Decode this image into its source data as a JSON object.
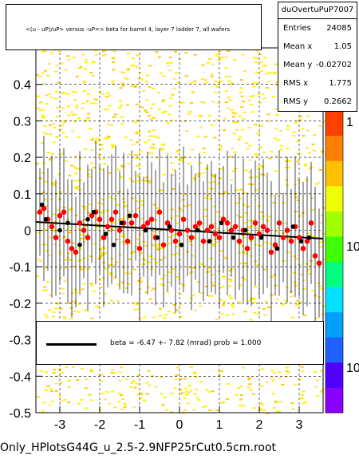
{
  "title": "<(u - uP)/uP> versus -uP=> beta for barrel 4, layer 7 ladder 7, all wafers",
  "stats": {
    "name": "duOvertuPuP7007",
    "rows": [
      {
        "key": "Entries",
        "value": "24085"
      },
      {
        "key": "Mean x",
        "value": "1.05"
      },
      {
        "key": "Mean y",
        "value": "-0.02702"
      },
      {
        "key": "RMS x",
        "value": "1.775"
      },
      {
        "key": "RMS y",
        "value": "0.2662"
      }
    ]
  },
  "legend": {
    "text": "beta =   -6.47 +- 7.82 (mrad) prob = 1.000"
  },
  "footer": "Only_HPlotsG44G_u_2.5-2.9NFP25rCut0.5cm.root",
  "colors": {
    "fit_line": "#000000",
    "points": "#ff0000",
    "markers": "#000000",
    "grid": "#000000",
    "frame": "#000000"
  },
  "chart_data": {
    "type": "scatter",
    "x_ticks": [
      "-3",
      "-2",
      "-1",
      "0",
      "1",
      "2",
      "3"
    ],
    "y_ticks": [
      "-0.5",
      "-0.4",
      "-0.3",
      "-0.2",
      "-0.1",
      "0",
      "0.1",
      "0.2",
      "0.3",
      "0.4"
    ],
    "xlim": [
      -3.6,
      3.6
    ],
    "ylim": [
      -0.5,
      0.5
    ],
    "z_axis_labels": [
      "1",
      "10",
      "10"
    ],
    "grid": true,
    "log_z": true,
    "fit_line": {
      "x": [
        -3.6,
        3.6
      ],
      "y": [
        0.023,
        -0.023
      ]
    },
    "red_points": {
      "x": [
        -3.5,
        -3.4,
        -3.3,
        -3.2,
        -3.1,
        -3.0,
        -2.9,
        -2.8,
        -2.7,
        -2.6,
        -2.5,
        -2.4,
        -2.3,
        -2.2,
        -2.1,
        -2.0,
        -1.9,
        -1.8,
        -1.7,
        -1.6,
        -1.5,
        -1.4,
        -1.3,
        -1.2,
        -1.1,
        -1.0,
        -0.9,
        -0.8,
        -0.7,
        -0.6,
        -0.5,
        -0.4,
        -0.3,
        -0.2,
        -0.1,
        0.0,
        0.1,
        0.2,
        0.3,
        0.4,
        0.5,
        0.6,
        0.7,
        0.8,
        0.9,
        1.0,
        1.1,
        1.2,
        1.3,
        1.4,
        1.5,
        1.6,
        1.7,
        1.8,
        1.9,
        2.0,
        2.1,
        2.2,
        2.3,
        2.4,
        2.5,
        2.6,
        2.7,
        2.8,
        2.9,
        3.0,
        3.1,
        3.2,
        3.3,
        3.4,
        3.5
      ],
      "y": [
        0.05,
        0.06,
        0.03,
        0.01,
        -0.02,
        0.04,
        0.05,
        -0.03,
        -0.05,
        -0.06,
        0.02,
        0.0,
        -0.02,
        0.04,
        0.05,
        0.03,
        -0.02,
        0.01,
        0.03,
        0.05,
        0.0,
        0.02,
        -0.03,
        0.02,
        0.04,
        -0.05,
        0.01,
        0.02,
        0.03,
        -0.02,
        0.05,
        -0.04,
        0.02,
        0.0,
        -0.03,
        -0.01,
        0.03,
        0.0,
        -0.02,
        0.01,
        0.02,
        -0.03,
        0.0,
        0.01,
        -0.01,
        -0.02,
        0.03,
        0.02,
        0.0,
        0.01,
        -0.03,
        0.0,
        -0.05,
        -0.02,
        0.02,
        -0.01,
        0.01,
        0.0,
        -0.06,
        -0.04,
        0.02,
        -0.02,
        0.0,
        -0.03,
        0.01,
        -0.02,
        -0.05,
        -0.03,
        0.02,
        -0.07,
        -0.09
      ]
    },
    "black_markers": {
      "x": [
        -3.45,
        -3.35,
        -3.0,
        -2.8,
        -2.5,
        -2.3,
        -2.15,
        -1.85,
        -1.65,
        -1.45,
        -1.25,
        -0.85,
        -0.55,
        -0.25,
        0.05,
        0.45,
        0.75,
        1.05,
        1.35,
        1.65,
        2.05,
        2.45,
        2.85,
        3.05,
        3.25
      ],
      "y": [
        0.07,
        0.03,
        0.0,
        0.02,
        -0.04,
        0.03,
        0.05,
        -0.01,
        -0.04,
        0.02,
        0.04,
        0.0,
        -0.02,
        0.01,
        -0.04,
        0.0,
        -0.03,
        0.02,
        -0.02,
        0.0,
        -0.02,
        -0.05,
        0.01,
        -0.03,
        -0.02
      ]
    }
  }
}
